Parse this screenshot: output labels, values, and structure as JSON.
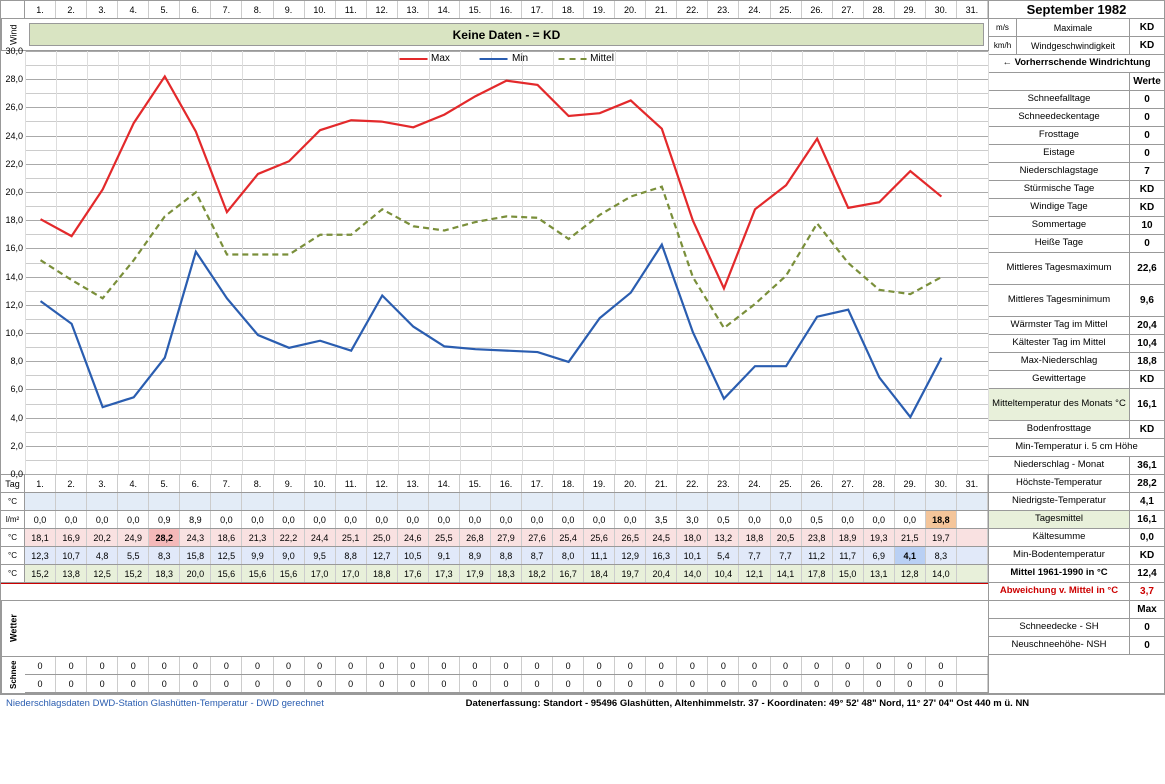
{
  "title": "September 1982",
  "days": [
    "1.",
    "2.",
    "3.",
    "4.",
    "5.",
    "6.",
    "7.",
    "8.",
    "9.",
    "10.",
    "11.",
    "12.",
    "13.",
    "14.",
    "15.",
    "16.",
    "17.",
    "18.",
    "19.",
    "20.",
    "21.",
    "22.",
    "23.",
    "24.",
    "25.",
    "26.",
    "27.",
    "28.",
    "29.",
    "30.",
    "31."
  ],
  "kd_banner": "Keine Daten -  = KD",
  "wind_label": "Wind",
  "tag_label": "Tag",
  "wetter_label": "Wetter",
  "schnee_label": "Schnee",
  "chart": {
    "ylim": [
      0,
      30
    ],
    "ytick_step": 2,
    "legend": [
      "Max",
      "Min",
      "Mittel"
    ],
    "colors": {
      "max": "#e3292b",
      "min": "#2a5db0",
      "mean": "#7a8f3a"
    },
    "grid_color": "#cccccc",
    "max": [
      18.1,
      16.9,
      20.2,
      24.9,
      28.2,
      24.3,
      18.6,
      21.3,
      22.2,
      24.4,
      25.1,
      25.0,
      24.6,
      25.5,
      26.8,
      27.9,
      27.6,
      25.4,
      25.6,
      26.5,
      24.5,
      18.0,
      13.2,
      18.8,
      20.5,
      23.8,
      18.9,
      19.3,
      21.5,
      19.7
    ],
    "min": [
      12.3,
      10.7,
      4.8,
      5.5,
      8.3,
      15.8,
      12.5,
      9.9,
      9.0,
      9.5,
      8.8,
      12.7,
      10.5,
      9.1,
      8.9,
      8.8,
      8.7,
      8.0,
      11.1,
      12.9,
      16.3,
      10.1,
      5.4,
      7.7,
      7.7,
      11.2,
      11.7,
      6.9,
      4.1,
      8.3
    ],
    "mean": [
      15.2,
      13.8,
      12.5,
      15.2,
      18.3,
      20.0,
      15.6,
      15.6,
      15.6,
      17.0,
      17.0,
      18.8,
      17.6,
      17.3,
      17.9,
      18.3,
      18.2,
      16.7,
      18.4,
      19.7,
      20.4,
      14.0,
      10.4,
      12.1,
      14.1,
      17.8,
      15.0,
      13.1,
      12.8,
      14.0
    ]
  },
  "rows": {
    "temp5_label": "°C",
    "precip_label": "l/m²",
    "max_label": "°C",
    "min_label": "°C",
    "mean_label": "°C",
    "precip": [
      "0,0",
      "0,0",
      "0,0",
      "0,0",
      "0,9",
      "8,9",
      "0,0",
      "0,0",
      "0,0",
      "0,0",
      "0,0",
      "0,0",
      "0,0",
      "0,0",
      "0,0",
      "0,0",
      "0,0",
      "0,0",
      "0,0",
      "0,0",
      "3,5",
      "3,0",
      "0,5",
      "0,0",
      "0,0",
      "0,5",
      "0,0",
      "0,0",
      "0,0",
      "18,8"
    ],
    "precip_hl": 29,
    "max": [
      "18,1",
      "16,9",
      "20,2",
      "24,9",
      "28,2",
      "24,3",
      "18,6",
      "21,3",
      "22,2",
      "24,4",
      "25,1",
      "25,0",
      "24,6",
      "25,5",
      "26,8",
      "27,9",
      "27,6",
      "25,4",
      "25,6",
      "26,5",
      "24,5",
      "18,0",
      "13,2",
      "18,8",
      "20,5",
      "23,8",
      "18,9",
      "19,3",
      "21,5",
      "19,7"
    ],
    "max_hl": 4,
    "min": [
      "12,3",
      "10,7",
      "4,8",
      "5,5",
      "8,3",
      "15,8",
      "12,5",
      "9,9",
      "9,0",
      "9,5",
      "8,8",
      "12,7",
      "10,5",
      "9,1",
      "8,9",
      "8,8",
      "8,7",
      "8,0",
      "11,1",
      "12,9",
      "16,3",
      "10,1",
      "5,4",
      "7,7",
      "7,7",
      "11,2",
      "11,7",
      "6,9",
      "4,1",
      "8,3"
    ],
    "min_hl": 28,
    "mean": [
      "15,2",
      "13,8",
      "12,5",
      "15,2",
      "18,3",
      "20,0",
      "15,6",
      "15,6",
      "15,6",
      "17,0",
      "17,0",
      "18,8",
      "17,6",
      "17,3",
      "17,9",
      "18,3",
      "18,2",
      "16,7",
      "18,4",
      "19,7",
      "20,4",
      "14,0",
      "10,4",
      "12,1",
      "14,1",
      "17,8",
      "15,0",
      "13,1",
      "12,8",
      "14,0"
    ],
    "zeros": [
      "0",
      "0",
      "0",
      "0",
      "0",
      "0",
      "0",
      "0",
      "0",
      "0",
      "0",
      "0",
      "0",
      "0",
      "0",
      "0",
      "0",
      "0",
      "0",
      "0",
      "0",
      "0",
      "0",
      "0",
      "0",
      "0",
      "0",
      "0",
      "0",
      "0"
    ]
  },
  "right": {
    "wind_rows": [
      {
        "u": "m/s",
        "k": "Maximale",
        "v": "KD"
      },
      {
        "u": "km/h",
        "k": "Windgeschwindigkeit",
        "v": "KD"
      }
    ],
    "wind_dir": "← Vorherrschende Windrichtung",
    "werte": "Werte",
    "stats": [
      {
        "k": "Schneefalltage",
        "v": "0"
      },
      {
        "k": "Schneedeckentage",
        "v": "0"
      },
      {
        "k": "Frosttage",
        "v": "0"
      },
      {
        "k": "Eistage",
        "v": "0"
      },
      {
        "k": "Niederschlagstage",
        "v": "7"
      },
      {
        "k": "Stürmische Tage",
        "v": "KD"
      },
      {
        "k": "Windige Tage",
        "v": "KD"
      },
      {
        "k": "Sommertage",
        "v": "10"
      },
      {
        "k": "Heiße Tage",
        "v": "0"
      },
      {
        "k": "Mittleres Tagesmaximum",
        "v": "22,6",
        "tall": true
      },
      {
        "k": "Mittleres Tagesminimum",
        "v": "9,6",
        "tall": true
      },
      {
        "k": "Wärmster Tag im Mittel",
        "v": "20,4"
      },
      {
        "k": "Kältester Tag im Mittel",
        "v": "10,4"
      },
      {
        "k": "Max-Niederschlag",
        "v": "18,8"
      },
      {
        "k": "Gewittertage",
        "v": "KD"
      },
      {
        "k": "Mitteltemperatur des Monats °C",
        "v": "16,1",
        "tall": true,
        "hl": true
      },
      {
        "k": "Bodenfrosttage",
        "v": "KD"
      }
    ],
    "temp5": "Min-Temperatur i. 5 cm Höhe",
    "precip": {
      "k": "Niederschlag - Monat",
      "v": "36,1"
    },
    "max": {
      "k": "Höchste-Temperatur",
      "v": "28,2"
    },
    "min": {
      "k": "Niedrigste-Temperatur",
      "v": "4,1"
    },
    "mean": {
      "k": "Tagesmittel",
      "v": "16,1"
    },
    "kaelte": {
      "k": "Kältesumme",
      "v": "0,0"
    },
    "boden": {
      "k": "Min-Bodentemperatur",
      "v": "KD"
    },
    "mittel6190": {
      "k": "Mittel 1961-1990 in °C",
      "v": "12,4"
    },
    "abw": {
      "k": "Abweichung v. Mittel in °C",
      "v": "3,7"
    },
    "max_lbl": "Max",
    "sh": {
      "k": "Schneedecke -   SH",
      "v": "0"
    },
    "nsh": {
      "k": "Neuschneehöhe- NSH",
      "v": "0"
    }
  },
  "footer": {
    "src": "Niederschlagsdaten DWD-Station Glashütten-Temperatur -  DWD gerechnet",
    "loc": "Datenerfassung: Standort -  95496 Glashütten, Altenhimmelstr. 37 - Koordinaten:  49° 52' 48\" Nord,   11° 27' 04\" Ost   440 m ü. NN"
  }
}
